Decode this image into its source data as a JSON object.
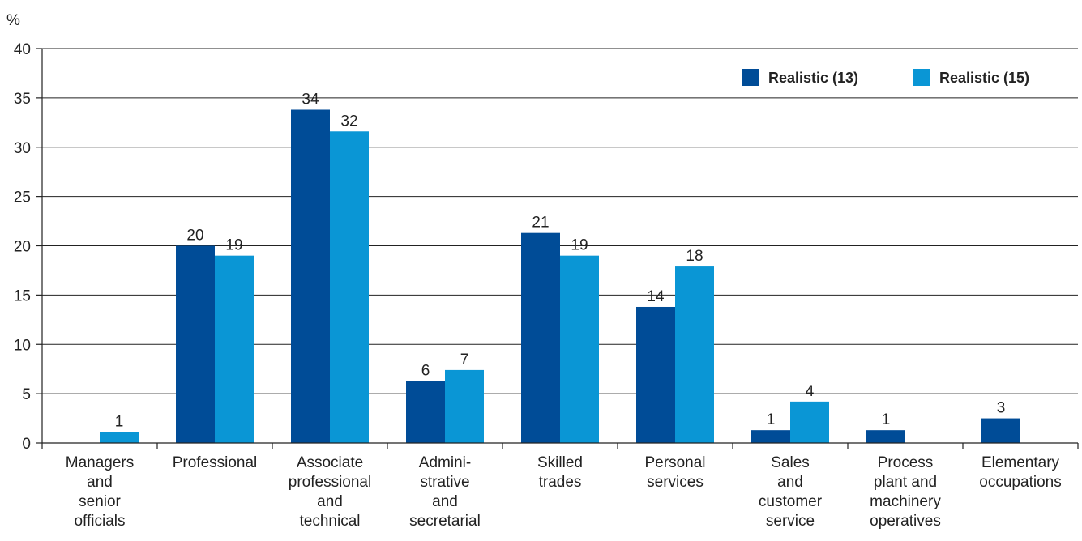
{
  "chart_data": {
    "type": "bar",
    "ylabel": "%",
    "ylim": [
      0,
      40
    ],
    "yticks": [
      0,
      5,
      10,
      15,
      20,
      25,
      30,
      35,
      40
    ],
    "grid": true,
    "legend_position": "top-right",
    "categories": [
      [
        "Managers",
        "and",
        "senior",
        "officials"
      ],
      [
        "Professional"
      ],
      [
        "Associate",
        "professional",
        "and",
        "technical"
      ],
      [
        "Admini-",
        "strative",
        "and",
        "secretarial"
      ],
      [
        "Skilled",
        "trades"
      ],
      [
        "Personal",
        "services"
      ],
      [
        "Sales",
        "and",
        "customer",
        "service"
      ],
      [
        "Process",
        "plant and",
        "machinery",
        "operatives"
      ],
      [
        "Elementary",
        "occupations"
      ]
    ],
    "series": [
      {
        "name": "Realistic (13)",
        "color": "#004c97",
        "values": [
          0,
          20,
          33.8,
          6.3,
          21.3,
          13.8,
          1.3,
          1.3,
          2.5
        ],
        "labels": [
          "",
          "20",
          "34",
          "6",
          "21",
          "14",
          "1",
          "1",
          "3"
        ]
      },
      {
        "name": "Realistic (15)",
        "color": "#0a96d5",
        "values": [
          1.1,
          19,
          31.6,
          7.4,
          19,
          17.9,
          4.2,
          0,
          0
        ],
        "labels": [
          "1",
          "19",
          "32",
          "7",
          "19",
          "18",
          "4",
          "",
          ""
        ]
      }
    ]
  }
}
